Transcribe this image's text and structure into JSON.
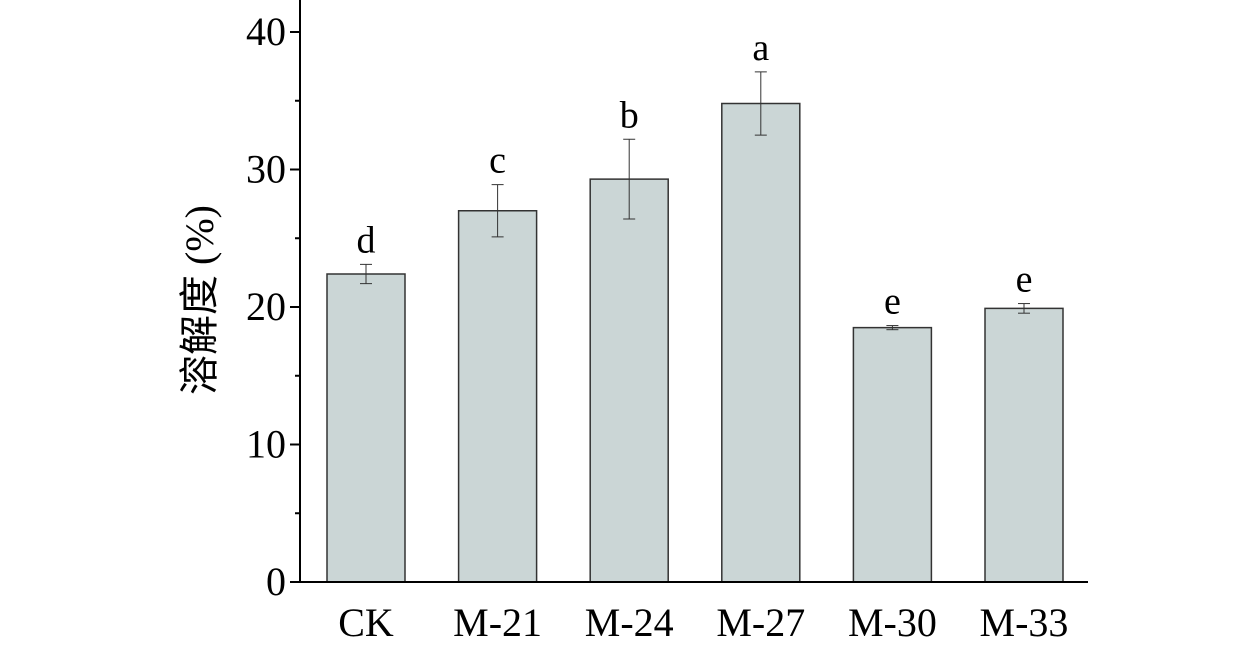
{
  "chart_data": {
    "type": "bar",
    "categories": [
      "CK",
      "M-21",
      "M-24",
      "M-27",
      "M-30",
      "M-33"
    ],
    "values": [
      22.4,
      27.0,
      29.3,
      34.8,
      18.5,
      19.9
    ],
    "errors": [
      0.7,
      1.9,
      2.9,
      2.3,
      0.15,
      0.35
    ],
    "significance_letters": [
      "d",
      "c",
      "b",
      "a",
      "e",
      "e"
    ],
    "ylabel": "溶解度 (%)",
    "xlabel": "",
    "yticks": [
      0,
      10,
      20,
      30,
      40
    ],
    "ylim": [
      0,
      42
    ],
    "bar_color": "#cbd6d6",
    "grid": false
  }
}
